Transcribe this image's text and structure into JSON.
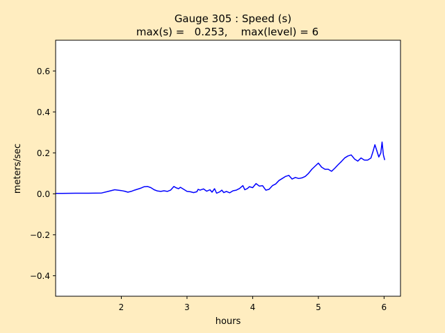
{
  "colors": {
    "figure_background": "#ffedc0",
    "axes_background": "#ffffff",
    "series": "#0000ff"
  },
  "chart_data": {
    "type": "line",
    "title": "Gauge 305 : Speed (s)",
    "subtitle": "max(s) =   0.253,    max(level) = 6",
    "xlabel": "hours",
    "ylabel": "meters/sec",
    "xlim": [
      1.0,
      6.25
    ],
    "ylim": [
      -0.5,
      0.75
    ],
    "xticks": [
      2,
      3,
      4,
      5,
      6
    ],
    "yticks": [
      -0.4,
      -0.2,
      0.0,
      0.2,
      0.4,
      0.6
    ],
    "xtick_labels": [
      "2",
      "3",
      "4",
      "5",
      "6"
    ],
    "ytick_labels": [
      "−0.4",
      "−0.2",
      "0.0",
      "0.2",
      "0.4",
      "0.6"
    ],
    "grid": false,
    "legend": "none",
    "series": [
      {
        "color": "#0000ff",
        "x": [
          1.0,
          1.1,
          1.3,
          1.5,
          1.7,
          1.8,
          1.9,
          2.0,
          2.05,
          2.1,
          2.15,
          2.2,
          2.3,
          2.35,
          2.4,
          2.45,
          2.5,
          2.55,
          2.6,
          2.65,
          2.7,
          2.75,
          2.8,
          2.83,
          2.87,
          2.9,
          2.95,
          3.0,
          3.05,
          3.1,
          3.15,
          3.17,
          3.2,
          3.25,
          3.3,
          3.35,
          3.38,
          3.42,
          3.45,
          3.5,
          3.53,
          3.56,
          3.6,
          3.65,
          3.7,
          3.75,
          3.8,
          3.85,
          3.88,
          3.92,
          3.95,
          4.0,
          4.05,
          4.1,
          4.15,
          4.2,
          4.25,
          4.3,
          4.35,
          4.4,
          4.45,
          4.5,
          4.55,
          4.6,
          4.65,
          4.7,
          4.75,
          4.8,
          4.85,
          4.9,
          4.95,
          5.0,
          5.05,
          5.1,
          5.15,
          5.2,
          5.25,
          5.3,
          5.35,
          5.4,
          5.45,
          5.5,
          5.55,
          5.6,
          5.65,
          5.7,
          5.75,
          5.8,
          5.83,
          5.86,
          5.89,
          5.92,
          5.95,
          5.97,
          5.99,
          6.01
        ],
        "y": [
          0.002,
          0.002,
          0.003,
          0.003,
          0.004,
          0.012,
          0.02,
          0.016,
          0.013,
          0.008,
          0.012,
          0.018,
          0.028,
          0.035,
          0.036,
          0.03,
          0.02,
          0.014,
          0.012,
          0.015,
          0.012,
          0.018,
          0.036,
          0.03,
          0.025,
          0.032,
          0.022,
          0.012,
          0.01,
          0.006,
          0.01,
          0.022,
          0.018,
          0.024,
          0.013,
          0.02,
          0.008,
          0.025,
          0.003,
          0.01,
          0.018,
          0.006,
          0.012,
          0.005,
          0.015,
          0.018,
          0.026,
          0.04,
          0.02,
          0.026,
          0.035,
          0.03,
          0.05,
          0.038,
          0.04,
          0.018,
          0.022,
          0.04,
          0.048,
          0.065,
          0.075,
          0.085,
          0.09,
          0.072,
          0.08,
          0.075,
          0.078,
          0.085,
          0.1,
          0.12,
          0.135,
          0.15,
          0.13,
          0.12,
          0.12,
          0.11,
          0.125,
          0.142,
          0.158,
          0.175,
          0.185,
          0.19,
          0.17,
          0.16,
          0.175,
          0.165,
          0.165,
          0.175,
          0.205,
          0.24,
          0.21,
          0.18,
          0.2,
          0.253,
          0.19,
          0.165
        ]
      }
    ]
  }
}
